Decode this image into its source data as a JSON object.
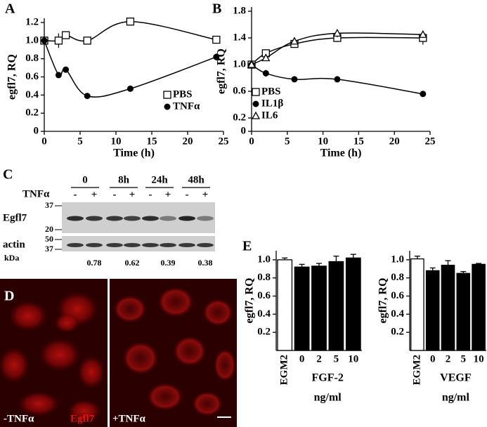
{
  "chart_data": [
    {
      "type": "line",
      "panel": "A",
      "ylabel": "egfl7, RQ",
      "xlabel": "Time (h)",
      "x": [
        0,
        2,
        3,
        6,
        12,
        24
      ],
      "xlim": [
        0,
        25
      ],
      "xticks": [
        0,
        5,
        10,
        15,
        20,
        25
      ],
      "ylim": [
        0,
        1.2
      ],
      "yticks": [
        0,
        0.2,
        0.4,
        0.6,
        0.8,
        {
          "value": 1,
          "label": "1.0"
        },
        1.2
      ],
      "legend": "lower right",
      "series": [
        {
          "name": "PBS",
          "marker": "square",
          "color": "#000",
          "values": [
            1.0,
            1.0,
            1.06,
            1.0,
            1.21,
            1.01
          ],
          "errors": [
            null,
            0.08,
            null,
            null,
            0.02,
            0.02
          ]
        },
        {
          "name": "TNFα",
          "marker": "circle",
          "color": "#000",
          "values": [
            1.0,
            0.62,
            0.68,
            0.39,
            0.47,
            0.82
          ],
          "errors": [
            null,
            null,
            null,
            null,
            null,
            0.04
          ]
        }
      ]
    },
    {
      "type": "line",
      "panel": "B",
      "ylabel": "egfl7, RQ",
      "xlabel": "Time (h)",
      "x": [
        0,
        2,
        6,
        12,
        24
      ],
      "xlim": [
        0,
        25
      ],
      "xticks": [
        0,
        5,
        10,
        15,
        20,
        25
      ],
      "ylim": [
        0,
        1.8
      ],
      "yticks": [
        0,
        0.2,
        0.6,
        {
          "value": 1,
          "label": "1.0"
        },
        1.4,
        1.8
      ],
      "legend": "lower left",
      "series": [
        {
          "name": "PBS",
          "marker": "square",
          "color": "#000",
          "values": [
            1.0,
            1.17,
            1.31,
            1.4,
            1.4
          ],
          "errors": [
            null,
            0.04,
            0.05,
            0.06,
            0.1
          ]
        },
        {
          "name": "IL1β",
          "marker": "circle",
          "color": "#000",
          "values": [
            1.0,
            0.87,
            0.78,
            0.78,
            0.56
          ],
          "errors": [
            null,
            0.05,
            null,
            null,
            null
          ]
        },
        {
          "name": "IL6",
          "marker": "triangle",
          "color": "#000",
          "values": [
            1.0,
            1.1,
            1.35,
            1.47,
            1.45
          ],
          "errors": [
            null,
            null,
            0.03,
            0.06,
            0.05
          ]
        }
      ]
    },
    {
      "type": "bar",
      "panel": "E",
      "ylabel": "egfl7, RQ",
      "xlabel": "FGF-2",
      "xunit": "ng/ml",
      "categories": [
        "EGM2",
        "0",
        "2",
        "5",
        "10"
      ],
      "values": [
        1.0,
        0.92,
        0.93,
        0.98,
        1.02
      ],
      "errors": [
        0.02,
        0.03,
        0.03,
        0.06,
        0.04
      ],
      "colors": [
        "#fff",
        "#000",
        "#000",
        "#000",
        "#000"
      ],
      "ylim": [
        0,
        1.1
      ],
      "yticks": [
        0.2,
        0.4,
        0.6,
        0.8,
        {
          "value": 1,
          "label": "1.0"
        }
      ]
    },
    {
      "type": "bar",
      "ylabel": "egfl7, RQ",
      "xlabel": "VEGF",
      "xunit": "ng/ml",
      "categories": [
        "EGM2",
        "0",
        "2",
        "5",
        "10"
      ],
      "values": [
        1.01,
        0.88,
        0.94,
        0.85,
        0.95
      ],
      "errors": [
        0.03,
        0.03,
        0.05,
        0.02,
        0.01
      ],
      "colors": [
        "#fff",
        "#000",
        "#000",
        "#000",
        "#000"
      ],
      "ylim": [
        0,
        1.1
      ],
      "yticks": [
        0.2,
        0.4,
        0.6,
        0.8,
        {
          "value": 1,
          "label": "1.0"
        }
      ]
    }
  ],
  "panel_c": {
    "label": "C",
    "timepoints": [
      "0",
      "8h",
      "24h",
      "48h"
    ],
    "treatment": "TNFα",
    "signs": [
      "-",
      "+",
      "-",
      "+",
      "-",
      "+",
      "-",
      "+"
    ],
    "rows": [
      "Egfl7",
      "actin"
    ],
    "markers": [
      "37",
      "20",
      "50",
      "37"
    ],
    "unit": "kDa",
    "ratios": [
      "0.78",
      "0.62",
      "0.39",
      "0.38"
    ]
  },
  "panel_d": {
    "label": "D",
    "left": "-TNFα",
    "stain": "Egfl7",
    "right": "+TNFα"
  }
}
